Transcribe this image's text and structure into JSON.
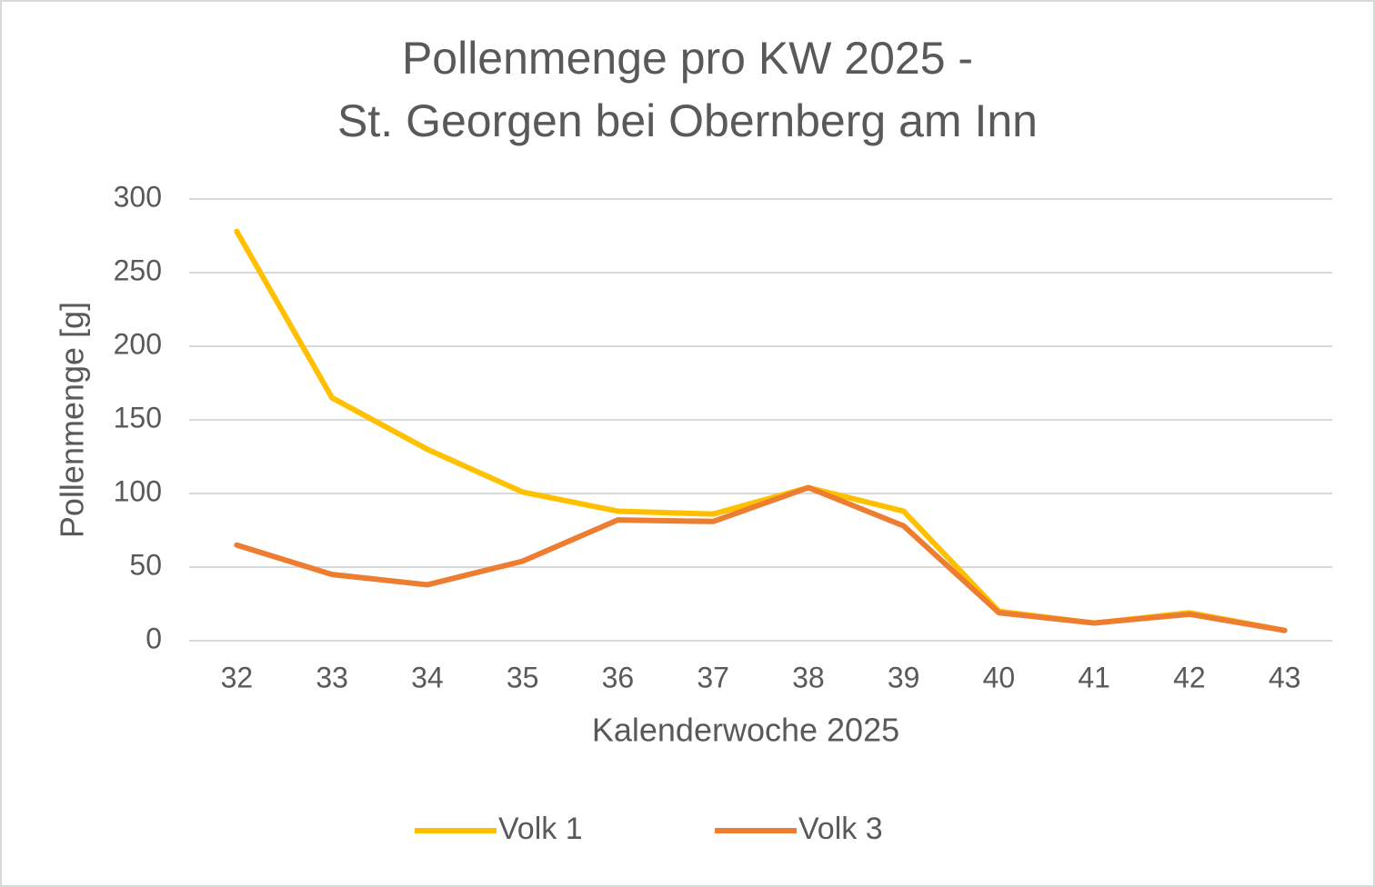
{
  "chart_data": {
    "type": "line",
    "title": [
      "Pollenmenge pro KW 2025 -",
      "St. Georgen bei Obernberg am Inn"
    ],
    "x_label": "Kalenderwoche 2025",
    "y_label": "Pollenmenge [g]",
    "categories": [
      "32",
      "33",
      "34",
      "35",
      "36",
      "37",
      "38",
      "39",
      "40",
      "41",
      "42",
      "43"
    ],
    "series": [
      {
        "name": "Volk 1",
        "color": "#ffc000",
        "values": [
          278,
          165,
          130,
          101,
          88,
          86,
          104,
          88,
          20,
          12,
          19,
          7
        ]
      },
      {
        "name": "Volk 3",
        "color": "#ed7d31",
        "values": [
          65,
          45,
          38,
          54,
          82,
          81,
          104,
          78,
          19,
          12,
          18,
          7
        ]
      }
    ],
    "ylim": [
      0,
      300
    ],
    "yticks": [
      0,
      50,
      100,
      150,
      200,
      250,
      300
    ],
    "grid": true,
    "legend": "bottom"
  }
}
